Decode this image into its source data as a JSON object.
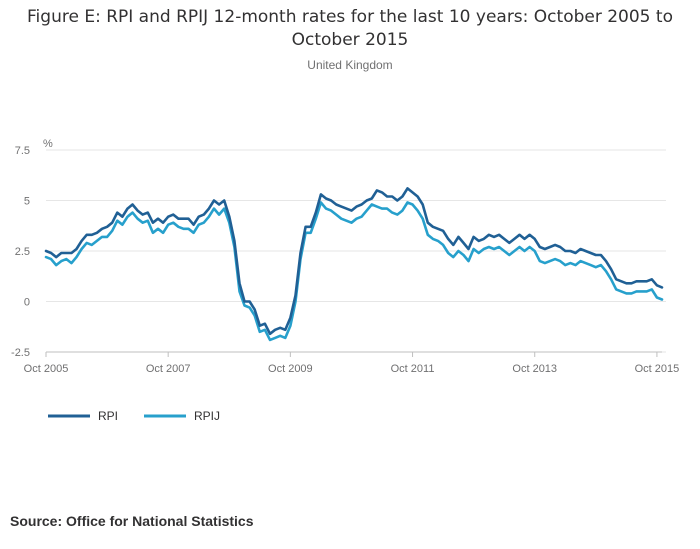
{
  "chart_data": {
    "type": "line",
    "title_line1": "Figure E: RPI and RPIJ 12-month rates for the last 10 years: October 2005 to",
    "title_line2": "October 2015",
    "subtitle": "United Kingdom",
    "ylabel": "%",
    "ylim": [
      -2.5,
      7.5
    ],
    "yticks": [
      7.5,
      5,
      2.5,
      0,
      -2.5
    ],
    "ytick_labels": [
      "7.5",
      "5",
      "2.5",
      "0",
      "-2.5"
    ],
    "xticks": [
      "Oct 2005",
      "Oct 2007",
      "Oct 2009",
      "Oct 2011",
      "Oct 2013",
      "Oct 2015"
    ],
    "x_start": "Oct 2005",
    "x_end": "Oct 2015",
    "grid": true,
    "legend_position": "bottom-left",
    "series": [
      {
        "name": "RPI",
        "color": "#206095",
        "values": [
          2.5,
          2.4,
          2.2,
          2.4,
          2.4,
          2.4,
          2.6,
          3.0,
          3.3,
          3.3,
          3.4,
          3.6,
          3.7,
          3.9,
          4.4,
          4.2,
          4.6,
          4.8,
          4.5,
          4.3,
          4.4,
          3.9,
          4.1,
          3.9,
          4.2,
          4.3,
          4.1,
          4.1,
          4.1,
          3.8,
          4.2,
          4.3,
          4.6,
          5.0,
          4.8,
          5.0,
          4.2,
          3.0,
          0.9,
          0.0,
          0.0,
          -0.4,
          -1.2,
          -1.1,
          -1.6,
          -1.4,
          -1.3,
          -1.4,
          -0.8,
          0.3,
          2.4,
          3.7,
          3.7,
          4.4,
          5.3,
          5.1,
          5.0,
          4.8,
          4.7,
          4.6,
          4.5,
          4.7,
          4.8,
          5.0,
          5.1,
          5.5,
          5.4,
          5.2,
          5.2,
          5.0,
          5.2,
          5.6,
          5.4,
          5.2,
          4.8,
          3.9,
          3.7,
          3.6,
          3.5,
          3.1,
          2.8,
          3.2,
          2.9,
          2.6,
          3.2,
          3.0,
          3.1,
          3.3,
          3.2,
          3.3,
          3.1,
          2.9,
          3.1,
          3.3,
          3.1,
          3.3,
          3.1,
          2.7,
          2.6,
          2.7,
          2.8,
          2.7,
          2.5,
          2.5,
          2.4,
          2.6,
          2.5,
          2.4,
          2.3,
          2.3,
          2.0,
          1.6,
          1.1,
          1.0,
          0.9,
          0.9,
          1.0,
          1.0,
          1.0,
          1.1,
          0.8,
          0.7
        ]
      },
      {
        "name": "RPIJ",
        "color": "#27a0cc",
        "values": [
          2.2,
          2.1,
          1.8,
          2.0,
          2.1,
          1.9,
          2.2,
          2.6,
          2.9,
          2.8,
          3.0,
          3.2,
          3.2,
          3.5,
          4.0,
          3.8,
          4.2,
          4.4,
          4.1,
          3.9,
          4.0,
          3.4,
          3.6,
          3.4,
          3.8,
          3.9,
          3.7,
          3.6,
          3.6,
          3.4,
          3.8,
          3.9,
          4.2,
          4.6,
          4.3,
          4.6,
          3.9,
          2.7,
          0.5,
          -0.2,
          -0.3,
          -0.7,
          -1.5,
          -1.4,
          -1.9,
          -1.8,
          -1.7,
          -1.8,
          -1.2,
          0.0,
          2.1,
          3.4,
          3.4,
          4.1,
          4.9,
          4.6,
          4.5,
          4.3,
          4.1,
          4.0,
          3.9,
          4.1,
          4.2,
          4.5,
          4.8,
          4.7,
          4.6,
          4.6,
          4.4,
          4.3,
          4.5,
          4.9,
          4.8,
          4.5,
          4.1,
          3.3,
          3.1,
          3.0,
          2.8,
          2.4,
          2.2,
          2.5,
          2.3,
          2.0,
          2.6,
          2.4,
          2.6,
          2.7,
          2.6,
          2.7,
          2.5,
          2.3,
          2.5,
          2.7,
          2.5,
          2.7,
          2.5,
          2.0,
          1.9,
          2.0,
          2.1,
          2.0,
          1.8,
          1.9,
          1.8,
          2.0,
          1.9,
          1.8,
          1.7,
          1.8,
          1.5,
          1.1,
          0.6,
          0.5,
          0.4,
          0.4,
          0.5,
          0.5,
          0.5,
          0.6,
          0.2,
          0.1
        ]
      }
    ]
  },
  "footer": {
    "source": "Source: Office for National Statistics"
  }
}
